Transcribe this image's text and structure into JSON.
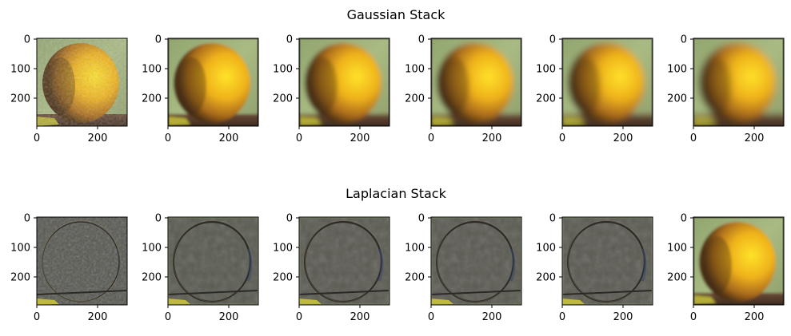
{
  "figure": {
    "rows": [
      {
        "title": "Gaussian Stack",
        "panels": [
          {
            "kind": "gaussian",
            "blur": 0
          },
          {
            "kind": "gaussian",
            "blur": 1
          },
          {
            "kind": "gaussian",
            "blur": 2
          },
          {
            "kind": "gaussian",
            "blur": 3
          },
          {
            "kind": "gaussian",
            "blur": 4
          },
          {
            "kind": "gaussian",
            "blur": 5
          }
        ]
      },
      {
        "title": "Laplacian Stack",
        "panels": [
          {
            "kind": "laplacian",
            "level": 1
          },
          {
            "kind": "laplacian",
            "level": 2
          },
          {
            "kind": "laplacian",
            "level": 3
          },
          {
            "kind": "laplacian",
            "level": 4
          },
          {
            "kind": "laplacian",
            "level": 5
          },
          {
            "kind": "residual",
            "blur": 5
          }
        ]
      }
    ],
    "x_ticks": [
      "0",
      "200"
    ],
    "y_ticks": [
      "0",
      "100",
      "200"
    ],
    "colors": {
      "orange_light": "#f7c21a",
      "orange_mid": "#e29a1b",
      "orange_dark": "#5a3a16",
      "background_green": "#9fb27a",
      "table_brown": "#6b4a36",
      "laplacian_gray": "#5b5a52",
      "laplacian_edge": "#2f2e2a"
    }
  }
}
